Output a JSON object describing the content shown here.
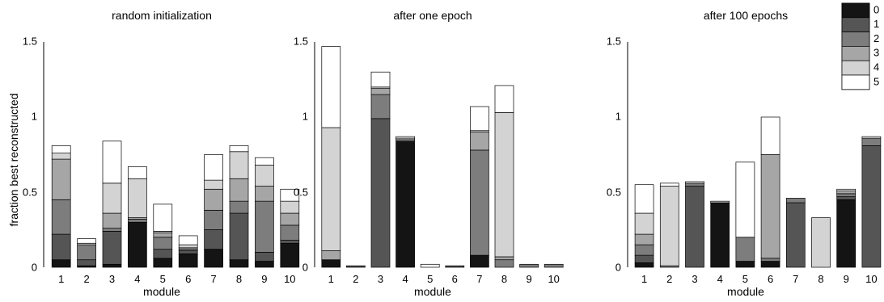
{
  "chart_data": {
    "type": "bar",
    "stacked": true,
    "ylabel": "fraction best reconstructed",
    "legend": {
      "placement": "top-right",
      "entries": [
        {
          "label": "0",
          "color": "#141414"
        },
        {
          "label": "1",
          "color": "#555555"
        },
        {
          "label": "2",
          "color": "#7d7d7d"
        },
        {
          "label": "3",
          "color": "#a6a6a6"
        },
        {
          "label": "4",
          "color": "#d3d3d3"
        },
        {
          "label": "5",
          "color": "#ffffff"
        }
      ]
    },
    "panels": [
      {
        "title": "random initialization",
        "xlabel": "module",
        "ylim": [
          0,
          1.5
        ],
        "yticks": [
          "0",
          "0.5",
          "1",
          "1.5"
        ],
        "categories": [
          "1",
          "2",
          "3",
          "4",
          "5",
          "6",
          "7",
          "8",
          "9",
          "10"
        ],
        "stacks": [
          [
            0.05,
            0.17,
            0.23,
            0.27,
            0.04,
            0.05
          ],
          [
            0.01,
            0.04,
            0.1,
            0.0,
            0.01,
            0.03
          ],
          [
            0.02,
            0.22,
            0.02,
            0.1,
            0.2,
            0.28
          ],
          [
            0.3,
            0.0,
            0.02,
            0.01,
            0.26,
            0.08
          ],
          [
            0.06,
            0.06,
            0.08,
            0.03,
            0.01,
            0.18
          ],
          [
            0.09,
            0.02,
            0.01,
            0.01,
            0.02,
            0.06
          ],
          [
            0.12,
            0.13,
            0.13,
            0.14,
            0.06,
            0.17
          ],
          [
            0.05,
            0.31,
            0.08,
            0.15,
            0.18,
            0.04
          ],
          [
            0.04,
            0.06,
            0.34,
            0.1,
            0.14,
            0.05
          ],
          [
            0.16,
            0.02,
            0.1,
            0.08,
            0.08,
            0.08
          ]
        ]
      },
      {
        "title": "after one epoch",
        "xlabel": "module",
        "ylim": [
          0,
          1.5
        ],
        "yticks": [
          "0",
          "0.5",
          "1",
          "1.5"
        ],
        "categories": [
          "1",
          "2",
          "3",
          "4",
          "5",
          "6",
          "7",
          "8",
          "9",
          "10"
        ],
        "stacks": [
          [
            0.05,
            0.0,
            0.0,
            0.06,
            0.82,
            0.54
          ],
          [
            0.0,
            0.01,
            0.0,
            0.0,
            0.0,
            0.0
          ],
          [
            0.0,
            0.99,
            0.16,
            0.04,
            0.01,
            0.1
          ],
          [
            0.84,
            0.0,
            0.0,
            0.01,
            0.01,
            0.01
          ],
          [
            0.0,
            0.0,
            0.0,
            0.0,
            0.0,
            0.02
          ],
          [
            0.0,
            0.01,
            0.0,
            0.0,
            0.0,
            0.0
          ],
          [
            0.08,
            0.0,
            0.7,
            0.12,
            0.01,
            0.16
          ],
          [
            0.0,
            0.0,
            0.05,
            0.02,
            0.96,
            0.18
          ],
          [
            0.0,
            0.0,
            0.02,
            0.0,
            0.0,
            0.0
          ],
          [
            0.0,
            0.0,
            0.02,
            0.0,
            0.0,
            0.0
          ]
        ]
      },
      {
        "title": "after 100 epochs",
        "xlabel": "module",
        "ylim": [
          0,
          1.5
        ],
        "yticks": [
          "0",
          "0.5",
          "1",
          "1.5"
        ],
        "categories": [
          "1",
          "2",
          "3",
          "4",
          "5",
          "6",
          "7",
          "8",
          "9",
          "10"
        ],
        "stacks": [
          [
            0.03,
            0.05,
            0.07,
            0.07,
            0.14,
            0.19
          ],
          [
            0.0,
            0.0,
            0.01,
            0.0,
            0.53,
            0.02
          ],
          [
            0.0,
            0.54,
            0.02,
            0.0,
            0.0,
            0.01
          ],
          [
            0.43,
            0.0,
            0.0,
            0.0,
            0.01,
            0.0
          ],
          [
            0.04,
            0.0,
            0.16,
            0.0,
            0.0,
            0.5
          ],
          [
            0.04,
            0.0,
            0.02,
            0.69,
            0.0,
            0.25
          ],
          [
            0.0,
            0.43,
            0.03,
            0.0,
            0.0,
            0.0
          ],
          [
            0.0,
            0.0,
            0.0,
            0.0,
            0.33,
            0.0
          ],
          [
            0.45,
            0.02,
            0.02,
            0.02,
            0.0,
            0.01
          ],
          [
            0.0,
            0.81,
            0.05,
            0.0,
            0.0,
            0.01
          ]
        ]
      }
    ]
  }
}
